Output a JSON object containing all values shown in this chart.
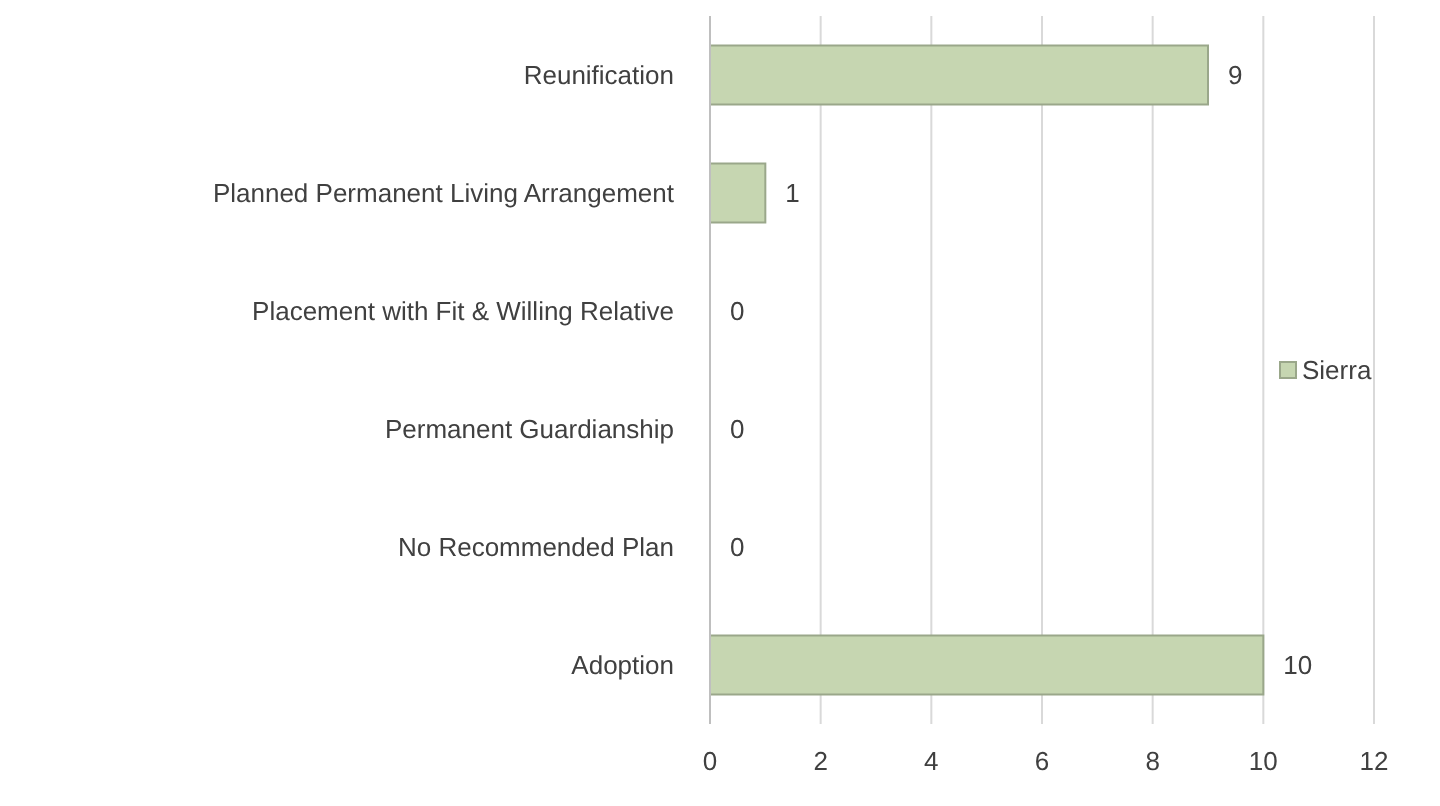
{
  "chart_data": {
    "type": "bar",
    "orientation": "horizontal",
    "categories": [
      "Reunification",
      "Planned Permanent Living Arrangement",
      "Placement with Fit & Willing Relative",
      "Permanent Guardianship",
      "No Recommended Plan",
      "Adoption"
    ],
    "series": [
      {
        "name": "Sierra",
        "color": "#c6d6b1",
        "values": [
          9,
          1,
          0,
          0,
          0,
          10
        ]
      }
    ],
    "xlim": [
      0,
      12
    ],
    "xticks": [
      0,
      2,
      4,
      6,
      8,
      10,
      12
    ],
    "grid": "x",
    "legend": "right",
    "data_labels": true
  }
}
